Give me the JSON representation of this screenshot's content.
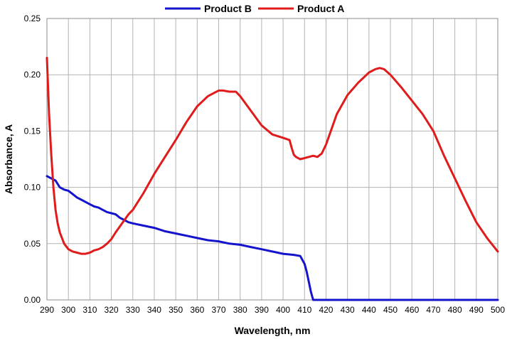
{
  "chart_data": {
    "type": "line",
    "title": "",
    "xlabel": "Wavelength, nm",
    "ylabel": "Absorbance, A",
    "xlim": [
      290,
      500
    ],
    "ylim": [
      0,
      0.25
    ],
    "xticks": [
      290,
      300,
      310,
      320,
      330,
      340,
      350,
      360,
      370,
      380,
      390,
      400,
      410,
      420,
      430,
      440,
      450,
      460,
      470,
      480,
      490,
      500
    ],
    "yticks": [
      0.0,
      0.05,
      0.1,
      0.15,
      0.2,
      0.25
    ],
    "ytick_labels": [
      "0.00",
      "0.05",
      "0.10",
      "0.15",
      "0.20",
      "0.25"
    ],
    "grid": true,
    "legend_position": "top",
    "series": [
      {
        "name": "Product B",
        "color": "#1414cc",
        "x": [
          290,
          292,
          294,
          296,
          298,
          300,
          302,
          304,
          306,
          308,
          310,
          312,
          314,
          316,
          318,
          320,
          322,
          324,
          326,
          328,
          330,
          335,
          340,
          345,
          350,
          355,
          360,
          365,
          370,
          375,
          380,
          385,
          390,
          395,
          400,
          405,
          408,
          410,
          411,
          412,
          413,
          414,
          420,
          430,
          440,
          450,
          460,
          470,
          480,
          490,
          500
        ],
        "y": [
          0.11,
          0.108,
          0.106,
          0.1,
          0.098,
          0.097,
          0.094,
          0.091,
          0.089,
          0.087,
          0.085,
          0.083,
          0.082,
          0.08,
          0.078,
          0.077,
          0.076,
          0.073,
          0.071,
          0.069,
          0.068,
          0.066,
          0.064,
          0.061,
          0.059,
          0.057,
          0.055,
          0.053,
          0.052,
          0.05,
          0.049,
          0.047,
          0.045,
          0.043,
          0.041,
          0.04,
          0.039,
          0.032,
          0.025,
          0.016,
          0.007,
          0.0,
          0.0,
          0.0,
          0.0,
          0.0,
          0.0,
          0.0,
          0.0,
          0.0,
          0.0
        ]
      },
      {
        "name": "Product A",
        "color": "#e01b1b",
        "x": [
          290,
          291,
          292,
          293,
          294,
          295,
          296,
          298,
          300,
          302,
          304,
          306,
          308,
          310,
          312,
          314,
          316,
          318,
          320,
          322,
          325,
          328,
          330,
          335,
          340,
          345,
          350,
          355,
          360,
          365,
          370,
          372,
          375,
          378,
          380,
          385,
          390,
          395,
          400,
          403,
          404,
          405,
          406,
          408,
          410,
          412,
          414,
          416,
          418,
          420,
          425,
          430,
          435,
          440,
          443,
          445,
          447,
          450,
          455,
          460,
          465,
          470,
          475,
          480,
          485,
          490,
          495,
          500
        ],
        "y": [
          0.215,
          0.165,
          0.13,
          0.1,
          0.08,
          0.068,
          0.06,
          0.05,
          0.045,
          0.043,
          0.042,
          0.041,
          0.041,
          0.042,
          0.044,
          0.045,
          0.047,
          0.05,
          0.054,
          0.06,
          0.068,
          0.076,
          0.08,
          0.095,
          0.112,
          0.127,
          0.142,
          0.158,
          0.172,
          0.181,
          0.186,
          0.186,
          0.185,
          0.185,
          0.181,
          0.168,
          0.155,
          0.147,
          0.144,
          0.142,
          0.135,
          0.129,
          0.127,
          0.125,
          0.126,
          0.127,
          0.128,
          0.127,
          0.13,
          0.138,
          0.165,
          0.182,
          0.193,
          0.202,
          0.205,
          0.206,
          0.205,
          0.2,
          0.189,
          0.177,
          0.165,
          0.15,
          0.128,
          0.108,
          0.088,
          0.069,
          0.055,
          0.043
        ]
      }
    ]
  }
}
